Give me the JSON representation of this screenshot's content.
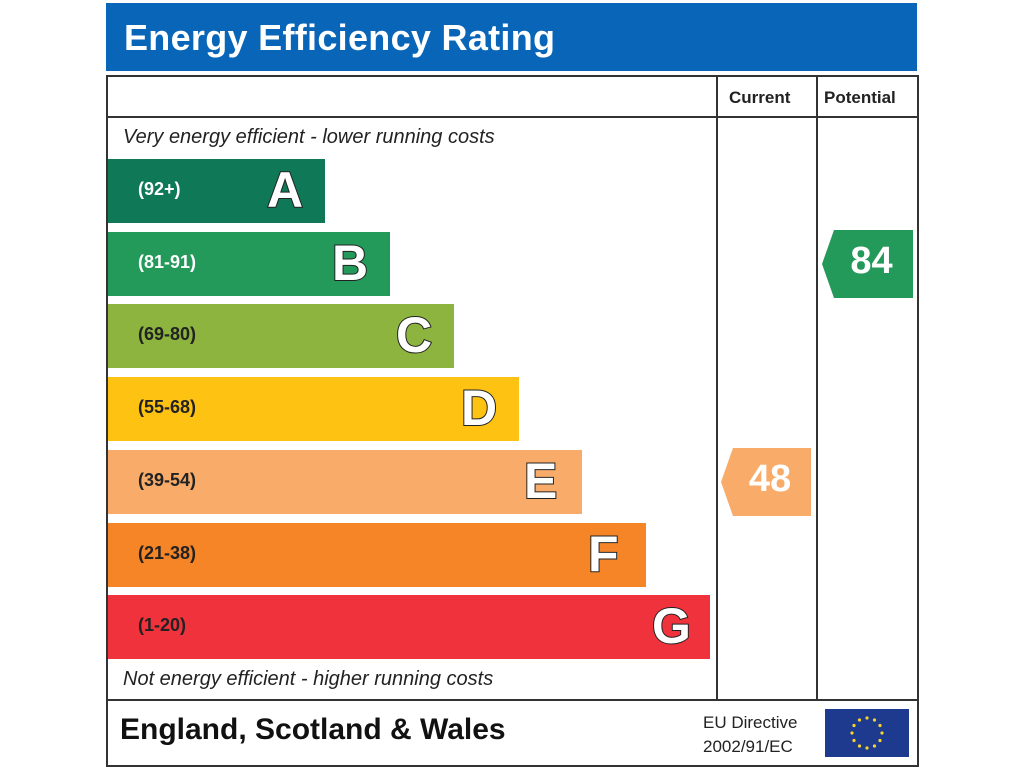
{
  "header": {
    "title": "Energy Efficiency Rating"
  },
  "columns": {
    "current": "Current",
    "potential": "Potential"
  },
  "captions": {
    "top": "Very energy efficient - lower running costs",
    "bottom": "Not energy efficient - higher running costs"
  },
  "footer": {
    "region": "England, Scotland & Wales",
    "directive_line1": "EU Directive",
    "directive_line2": "2002/91/EC",
    "flag_icon": "eu-flag-icon"
  },
  "chart_data": {
    "type": "bar",
    "title": "Energy Efficiency Rating",
    "orientation": "horizontal",
    "categories": [
      "A",
      "B",
      "C",
      "D",
      "E",
      "F",
      "G"
    ],
    "bands": [
      {
        "letter": "A",
        "range": "(92+)",
        "color": "#0f7857",
        "range_color": "#ffffff"
      },
      {
        "letter": "B",
        "range": "(81-91)",
        "color": "#23995a",
        "range_color": "#ffffff"
      },
      {
        "letter": "C",
        "range": "(69-80)",
        "color": "#8db43e",
        "range_color": "#222222"
      },
      {
        "letter": "D",
        "range": "(55-68)",
        "color": "#fec312",
        "range_color": "#222222"
      },
      {
        "letter": "E",
        "range": "(39-54)",
        "color": "#f9ac6a",
        "range_color": "#222222"
      },
      {
        "letter": "F",
        "range": "(21-38)",
        "color": "#f58526",
        "range_color": "#222222"
      },
      {
        "letter": "G",
        "range": "(1-20)",
        "color": "#f0323c",
        "range_color": "#222222"
      }
    ],
    "current": {
      "value": 48,
      "band": "E",
      "color": "#f9ac6a"
    },
    "potential": {
      "value": 84,
      "band": "B",
      "color": "#23995a"
    },
    "legend": {
      "top": "Very energy efficient - lower running costs",
      "bottom": "Not energy efficient - higher running costs"
    }
  }
}
